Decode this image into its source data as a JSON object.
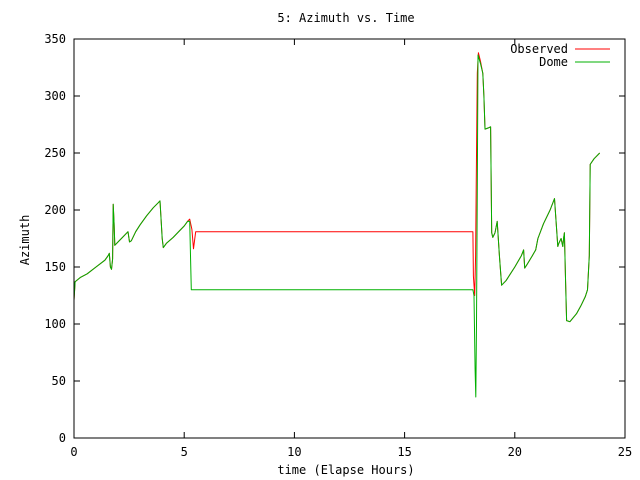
{
  "chart_data": {
    "type": "line",
    "title": "5: Azimuth vs. Time",
    "xlabel": "time (Elapse Hours)",
    "ylabel": "Azimuth",
    "xlim": [
      0,
      25
    ],
    "ylim": [
      0,
      350
    ],
    "xticks": [
      0,
      5,
      10,
      15,
      20,
      25
    ],
    "yticks": [
      0,
      50,
      100,
      150,
      200,
      250,
      300,
      350
    ],
    "xtick_labels": [
      "0",
      "5",
      "10",
      "15",
      "20",
      "25"
    ],
    "ytick_labels": [
      "0",
      "50",
      "100",
      "150",
      "200",
      "250",
      "300",
      "350"
    ],
    "grid": false,
    "legend_position": "top-right",
    "series": [
      {
        "name": "Observed",
        "color": "#ff0000",
        "points": [
          [
            0.0,
            121
          ],
          [
            0.05,
            137
          ],
          [
            0.3,
            141
          ],
          [
            0.6,
            144
          ],
          [
            1.0,
            150
          ],
          [
            1.4,
            156
          ],
          [
            1.55,
            160
          ],
          [
            1.6,
            162
          ],
          [
            1.65,
            150
          ],
          [
            1.7,
            148
          ],
          [
            1.75,
            157
          ],
          [
            1.78,
            205
          ],
          [
            1.82,
            188
          ],
          [
            1.85,
            169
          ],
          [
            2.0,
            172
          ],
          [
            2.2,
            176
          ],
          [
            2.45,
            181
          ],
          [
            2.52,
            172
          ],
          [
            2.6,
            173
          ],
          [
            2.8,
            181
          ],
          [
            3.0,
            187
          ],
          [
            3.3,
            195
          ],
          [
            3.6,
            202
          ],
          [
            3.8,
            206
          ],
          [
            3.9,
            208
          ],
          [
            4.0,
            175
          ],
          [
            4.05,
            167
          ],
          [
            4.2,
            171
          ],
          [
            4.5,
            176
          ],
          [
            4.8,
            182
          ],
          [
            5.0,
            186
          ],
          [
            5.15,
            190
          ],
          [
            5.25,
            192
          ],
          [
            5.35,
            183
          ],
          [
            5.42,
            166
          ],
          [
            5.48,
            175
          ],
          [
            5.52,
            181
          ],
          [
            7.0,
            181
          ],
          [
            10.0,
            181
          ],
          [
            14.0,
            181
          ],
          [
            18.1,
            181
          ],
          [
            18.12,
            142
          ],
          [
            18.18,
            125
          ],
          [
            18.22,
            160
          ],
          [
            18.25,
            220
          ],
          [
            18.3,
            320
          ],
          [
            18.35,
            338
          ],
          [
            18.45,
            330
          ],
          [
            18.55,
            320
          ],
          [
            18.6,
            300
          ],
          [
            18.65,
            271
          ],
          [
            18.8,
            272
          ],
          [
            18.9,
            273
          ],
          [
            18.95,
            180
          ],
          [
            19.0,
            176
          ],
          [
            19.1,
            180
          ],
          [
            19.2,
            190
          ],
          [
            19.3,
            160
          ],
          [
            19.4,
            134
          ],
          [
            19.6,
            138
          ],
          [
            20.0,
            150
          ],
          [
            20.3,
            160
          ],
          [
            20.4,
            165
          ],
          [
            20.45,
            149
          ],
          [
            20.55,
            152
          ],
          [
            20.8,
            160
          ],
          [
            20.95,
            165
          ],
          [
            21.05,
            175
          ],
          [
            21.3,
            188
          ],
          [
            21.6,
            200
          ],
          [
            21.8,
            210
          ],
          [
            21.95,
            168
          ],
          [
            22.0,
            171
          ],
          [
            22.1,
            175
          ],
          [
            22.18,
            168
          ],
          [
            22.22,
            176
          ],
          [
            22.25,
            180
          ],
          [
            22.3,
            140
          ],
          [
            22.35,
            103
          ],
          [
            22.5,
            102
          ],
          [
            22.8,
            109
          ],
          [
            23.0,
            116
          ],
          [
            23.2,
            124
          ],
          [
            23.3,
            130
          ],
          [
            23.38,
            160
          ],
          [
            23.42,
            240
          ],
          [
            23.6,
            245
          ],
          [
            23.85,
            250
          ]
        ]
      },
      {
        "name": "Dome",
        "color": "#00b000",
        "points": [
          [
            0.0,
            121
          ],
          [
            0.05,
            137
          ],
          [
            0.3,
            141
          ],
          [
            0.6,
            144
          ],
          [
            1.0,
            150
          ],
          [
            1.4,
            156
          ],
          [
            1.55,
            160
          ],
          [
            1.6,
            162
          ],
          [
            1.65,
            150
          ],
          [
            1.7,
            148
          ],
          [
            1.75,
            157
          ],
          [
            1.78,
            205
          ],
          [
            1.82,
            188
          ],
          [
            1.85,
            169
          ],
          [
            2.0,
            172
          ],
          [
            2.2,
            176
          ],
          [
            2.45,
            181
          ],
          [
            2.52,
            172
          ],
          [
            2.6,
            173
          ],
          [
            2.8,
            181
          ],
          [
            3.0,
            187
          ],
          [
            3.3,
            195
          ],
          [
            3.6,
            202
          ],
          [
            3.8,
            206
          ],
          [
            3.9,
            208
          ],
          [
            4.0,
            175
          ],
          [
            4.05,
            167
          ],
          [
            4.2,
            171
          ],
          [
            4.5,
            176
          ],
          [
            4.8,
            182
          ],
          [
            5.0,
            186
          ],
          [
            5.15,
            190
          ],
          [
            5.25,
            190
          ],
          [
            5.32,
            130
          ],
          [
            7.0,
            130
          ],
          [
            10.0,
            130
          ],
          [
            14.0,
            130
          ],
          [
            18.1,
            130
          ],
          [
            18.15,
            125
          ],
          [
            18.2,
            60
          ],
          [
            18.23,
            36
          ],
          [
            18.26,
            100
          ],
          [
            18.3,
            220
          ],
          [
            18.33,
            336
          ],
          [
            18.45,
            328
          ],
          [
            18.55,
            320
          ],
          [
            18.6,
            300
          ],
          [
            18.65,
            271
          ],
          [
            18.8,
            272
          ],
          [
            18.9,
            273
          ],
          [
            18.95,
            180
          ],
          [
            19.0,
            176
          ],
          [
            19.1,
            180
          ],
          [
            19.2,
            190
          ],
          [
            19.3,
            160
          ],
          [
            19.4,
            134
          ],
          [
            19.6,
            138
          ],
          [
            20.0,
            150
          ],
          [
            20.3,
            160
          ],
          [
            20.4,
            165
          ],
          [
            20.45,
            149
          ],
          [
            20.55,
            152
          ],
          [
            20.8,
            160
          ],
          [
            20.95,
            165
          ],
          [
            21.05,
            175
          ],
          [
            21.3,
            188
          ],
          [
            21.6,
            200
          ],
          [
            21.8,
            210
          ],
          [
            21.95,
            168
          ],
          [
            22.0,
            171
          ],
          [
            22.1,
            175
          ],
          [
            22.18,
            168
          ],
          [
            22.22,
            176
          ],
          [
            22.25,
            180
          ],
          [
            22.3,
            140
          ],
          [
            22.35,
            103
          ],
          [
            22.5,
            102
          ],
          [
            22.8,
            109
          ],
          [
            23.0,
            116
          ],
          [
            23.2,
            124
          ],
          [
            23.3,
            130
          ],
          [
            23.38,
            160
          ],
          [
            23.42,
            240
          ],
          [
            23.6,
            245
          ],
          [
            23.85,
            250
          ]
        ]
      }
    ]
  }
}
